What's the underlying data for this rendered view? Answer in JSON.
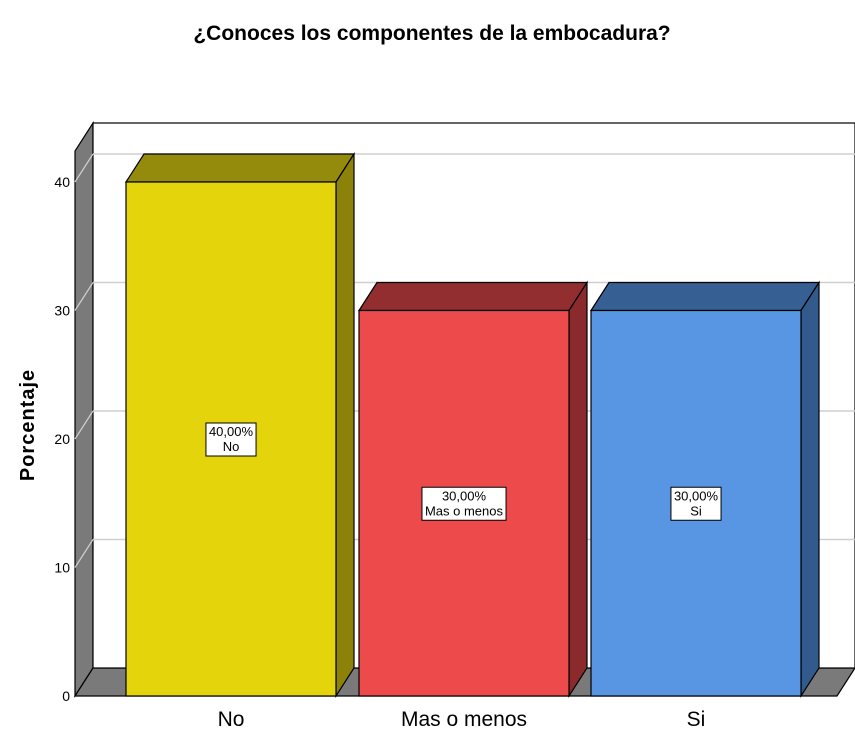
{
  "chart_data": {
    "type": "bar",
    "title": "¿Conoces los componentes de la embocadura?",
    "ylabel": "Porcentaje",
    "xlabel": "",
    "categories": [
      "No",
      "Mas o menos",
      "Si"
    ],
    "values": [
      40,
      30,
      30
    ],
    "data_labels": [
      {
        "value": "40,00%",
        "category": "No"
      },
      {
        "value": "30,00%",
        "category": "Mas o menos"
      },
      {
        "value": "30,00%",
        "category": "Si"
      }
    ],
    "colors": {
      "No": {
        "front": "#e3d40c",
        "top": "#948a0c",
        "side": "#8c820a"
      },
      "Mas o menos": {
        "front": "#ec4a4b",
        "top": "#922d30",
        "side": "#8a2a2c"
      },
      "Si": {
        "front": "#5896e4",
        "top": "#365f94",
        "side": "#335a8c"
      }
    },
    "ylim": [
      0,
      40
    ],
    "yticks": [
      0,
      10,
      20,
      30,
      40
    ],
    "grid": true,
    "style": "3d"
  }
}
